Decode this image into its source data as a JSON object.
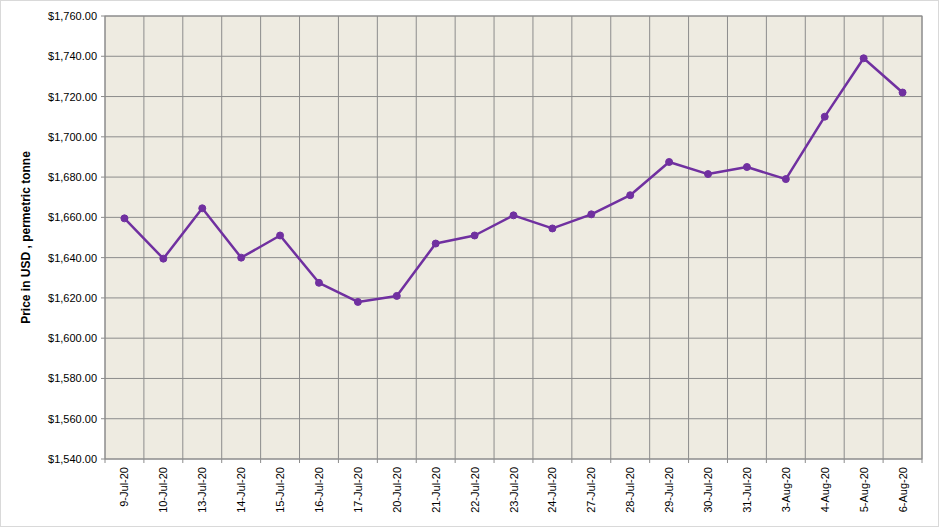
{
  "chart_data": {
    "type": "line",
    "y_label": "Price in USD , permetric tonne",
    "categories": [
      "9-Jul-20",
      "10-Jul-20",
      "13-Jul-20",
      "14-Jul-20",
      "15-Jul-20",
      "16-Jul-20",
      "17-Jul-20",
      "20-Jul-20",
      "21-Jul-20",
      "22-Jul-20",
      "23-Jul-20",
      "24-Jul-20",
      "27-Jul-20",
      "28-Jul-20",
      "29-Jul-20",
      "30-Jul-20",
      "31-Jul-20",
      "3-Aug-20",
      "4-Aug-20",
      "5-Aug-20",
      "6-Aug-20"
    ],
    "values": [
      1659.5,
      1639.5,
      1664.5,
      1640,
      1651,
      1627.5,
      1618,
      1621,
      1647,
      1651,
      1661,
      1654.5,
      1661.5,
      1671,
      1687.5,
      1681.5,
      1685,
      1679,
      1710,
      1739,
      1722
    ],
    "color": "#7030a0",
    "marker": "circle",
    "grid": true,
    "ylim": [
      1540,
      1760
    ],
    "yticks": [
      {
        "value": 1540,
        "label": "$1,540.00"
      },
      {
        "value": 1560,
        "label": "$1,560.00"
      },
      {
        "value": 1580,
        "label": "$1,580.00"
      },
      {
        "value": 1600,
        "label": "$1,600.00"
      },
      {
        "value": 1620,
        "label": "$1,620.00"
      },
      {
        "value": 1640,
        "label": "$1,640.00"
      },
      {
        "value": 1660,
        "label": "$1,660.00"
      },
      {
        "value": 1680,
        "label": "$1,680.00"
      },
      {
        "value": 1700,
        "label": "$1,700.00"
      },
      {
        "value": 1720,
        "label": "$1,720.00"
      },
      {
        "value": 1740,
        "label": "$1,740.00"
      },
      {
        "value": 1760,
        "label": "$1,760.00"
      }
    ]
  }
}
